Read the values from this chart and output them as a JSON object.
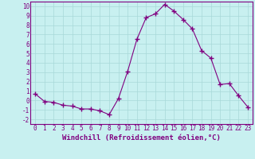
{
  "x": [
    0,
    1,
    2,
    3,
    4,
    5,
    6,
    7,
    8,
    9,
    10,
    11,
    12,
    13,
    14,
    15,
    16,
    17,
    18,
    19,
    20,
    21,
    22,
    23
  ],
  "y": [
    0.7,
    -0.1,
    -0.2,
    -0.5,
    -0.6,
    -0.9,
    -0.9,
    -1.1,
    -1.5,
    0.2,
    3.1,
    6.5,
    8.8,
    9.2,
    10.2,
    9.5,
    8.6,
    7.6,
    5.3,
    4.5,
    1.7,
    1.8,
    0.5,
    -0.7
  ],
  "line_color": "#800080",
  "marker": "+",
  "marker_size": 4,
  "marker_lw": 1.0,
  "bg_color": "#c8f0f0",
  "grid_color": "#a8d8d8",
  "xlabel": "Windchill (Refroidissement éolien,°C)",
  "xlim": [
    -0.5,
    23.5
  ],
  "ylim": [
    -2.5,
    10.5
  ],
  "xticks": [
    0,
    1,
    2,
    3,
    4,
    5,
    6,
    7,
    8,
    9,
    10,
    11,
    12,
    13,
    14,
    15,
    16,
    17,
    18,
    19,
    20,
    21,
    22,
    23
  ],
  "yticks": [
    -2,
    -1,
    0,
    1,
    2,
    3,
    4,
    5,
    6,
    7,
    8,
    9,
    10
  ],
  "tick_fontsize": 5.5,
  "xlabel_fontsize": 6.5
}
